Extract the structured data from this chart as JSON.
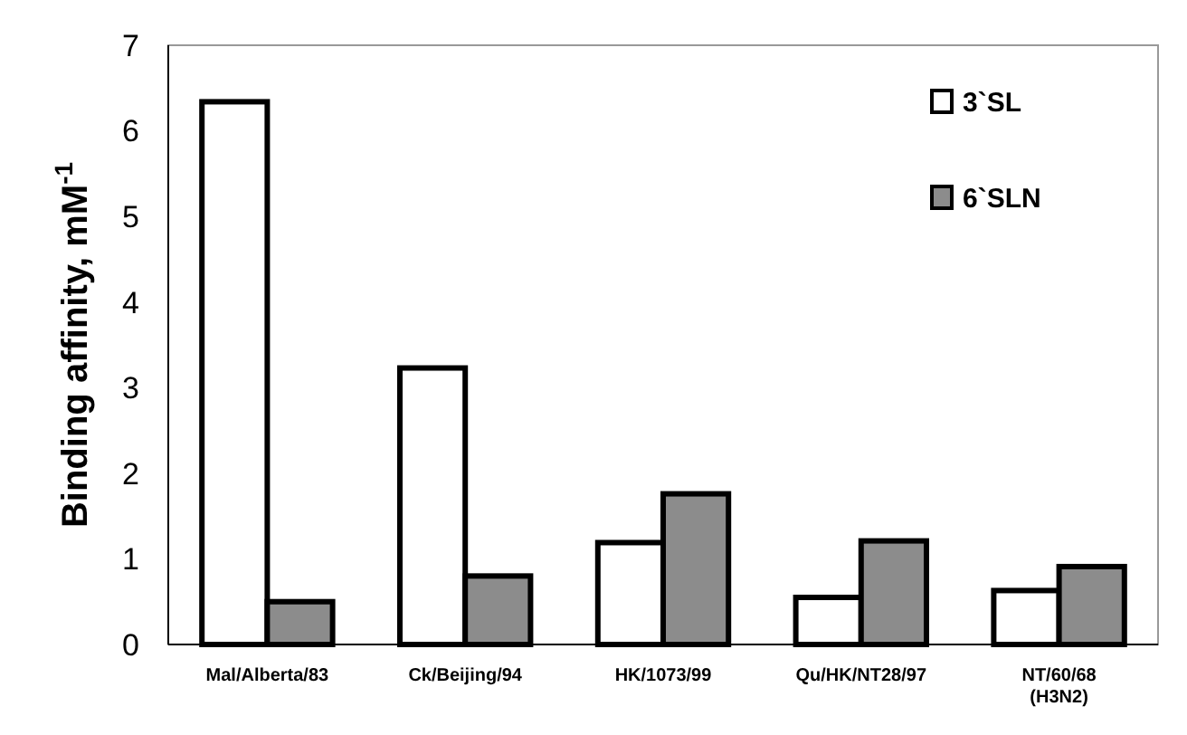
{
  "chart_data": {
    "type": "bar",
    "ylabel": "Binding affinity, mM$^{-1}$",
    "categories": [
      "Mal/Alberta/83",
      "Ck/Beijing/94",
      "HK/1073/99",
      "Qu/HK/NT28/97",
      "NT/60/68 (H3N2)"
    ],
    "series": [
      {
        "name": "3`SL",
        "color": "#ffffff",
        "values": [
          6.34,
          3.23,
          1.19,
          0.55,
          0.63
        ]
      },
      {
        "name": "6`SLN",
        "color": "#8c8c8c",
        "values": [
          0.5,
          0.8,
          1.76,
          1.21,
          0.91
        ]
      }
    ],
    "ylim": [
      0,
      7
    ],
    "yticks": [
      0,
      1,
      2,
      3,
      4,
      5,
      6,
      7
    ],
    "grid": false,
    "legend": "top right"
  }
}
